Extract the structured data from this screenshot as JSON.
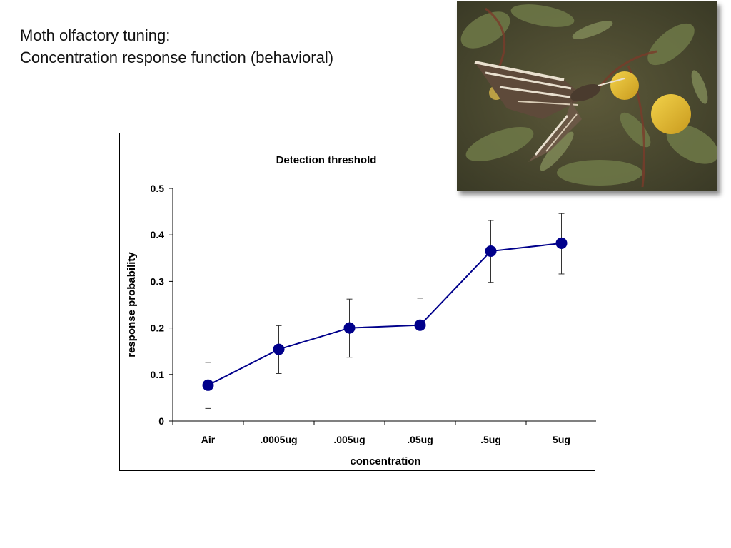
{
  "slide": {
    "title_line1": "Moth olfactory tuning:",
    "title_line2": "Concentration response function (behavioral)"
  },
  "photo": {
    "subject": "hawk-moth-feeding-on-flower"
  },
  "colors": {
    "series": "#00008b",
    "axis": "#000000"
  },
  "chart_data": {
    "type": "line",
    "title": "Detection threshold",
    "xlabel": "concentration",
    "ylabel": "response  probability",
    "categories": [
      "Air",
      ".0005ug",
      ".005ug",
      ".05ug",
      ".5ug",
      "5ug"
    ],
    "series": [
      {
        "values": [
          0.077,
          0.154,
          0.2,
          0.206,
          0.365,
          0.382
        ],
        "error_low": [
          0.027,
          0.102,
          0.137,
          0.148,
          0.298,
          0.316
        ],
        "error_high": [
          0.126,
          0.205,
          0.262,
          0.264,
          0.431,
          0.446
        ]
      }
    ],
    "ylim": [
      0,
      0.5
    ],
    "yticks": [
      0,
      0.1,
      0.2,
      0.3,
      0.4,
      0.5
    ],
    "ytick_labels": [
      "0",
      "0.1",
      "0.2",
      "0.3",
      "0.4",
      "0.5"
    ],
    "grid": false,
    "legend": "none"
  }
}
